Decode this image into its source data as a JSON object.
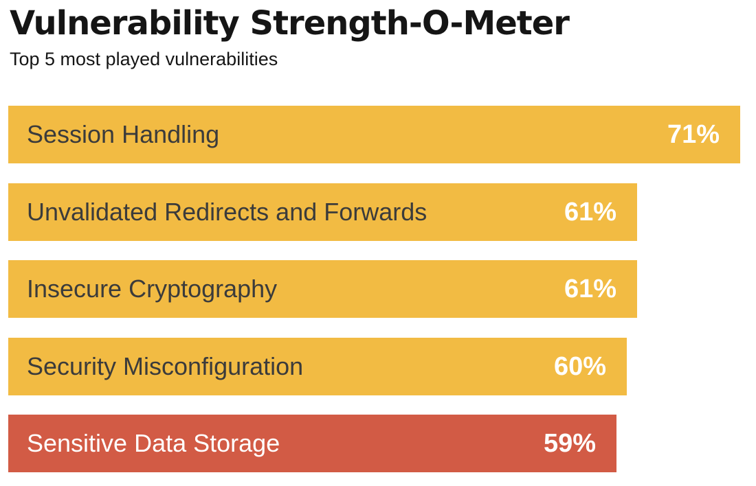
{
  "chart_data": {
    "type": "bar",
    "orientation": "horizontal",
    "title": "Vulnerability Strength-O-Meter",
    "subtitle": "Top 5 most played vulnerabilities",
    "xlabel": "",
    "ylabel": "",
    "xlim": [
      0,
      71
    ],
    "categories": [
      "Session Handling",
      "Unvalidated Redirects and Forwards",
      "Insecure Cryptography",
      "Security Misconfiguration",
      "Sensitive Data Storage"
    ],
    "values": [
      71,
      61,
      61,
      60,
      59
    ],
    "value_labels": [
      "71%",
      "61%",
      "61%",
      "60%",
      "59%"
    ],
    "bar_colors": [
      "#f2bb43",
      "#f2bb43",
      "#f2bb43",
      "#f2bb43",
      "#d25b45"
    ],
    "highlighted_index": 4
  }
}
